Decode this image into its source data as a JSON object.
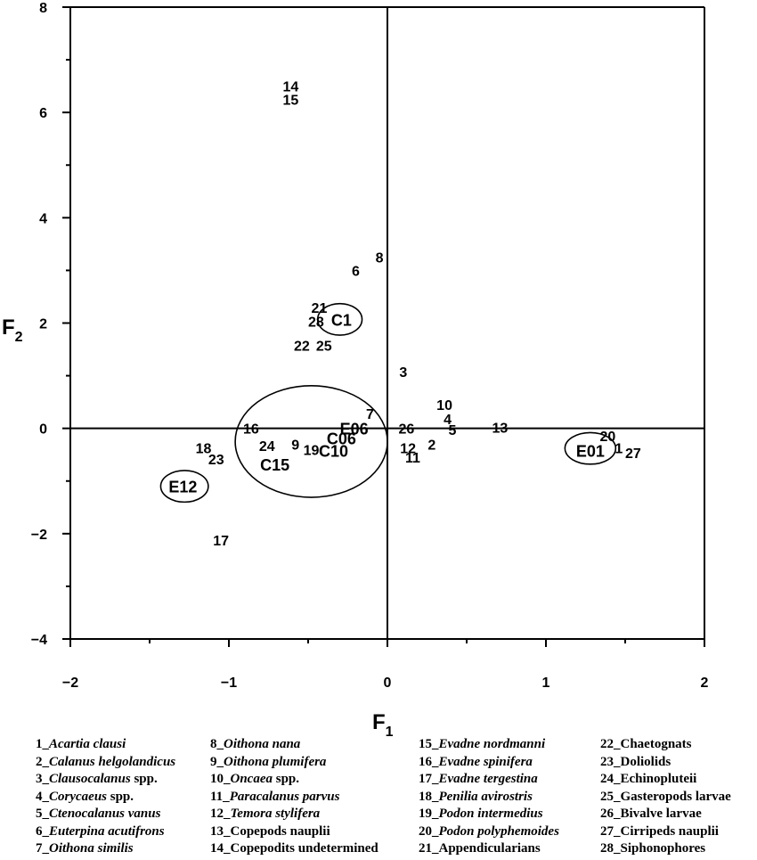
{
  "chart_data": {
    "type": "scatter",
    "xlabel": "F",
    "xlabel_sub": "1",
    "ylabel": "F",
    "ylabel_sub": "2",
    "xlim": [
      -2,
      2
    ],
    "ylim": [
      -4,
      8
    ],
    "x_ticks": [
      "−2",
      "−1",
      "0",
      "1",
      "2"
    ],
    "y_ticks": [
      "−4",
      "−2",
      "0",
      "2",
      "4",
      "6",
      "8"
    ],
    "x_tick_values": [
      -2,
      -1,
      0,
      1,
      2
    ],
    "y_tick_values": [
      -4,
      -2,
      0,
      2,
      4,
      6,
      8
    ],
    "grid": false,
    "species_points": [
      {
        "label": "14",
        "x": -0.61,
        "y": 6.5
      },
      {
        "label": "15",
        "x": -0.61,
        "y": 6.25
      },
      {
        "label": "8",
        "x": -0.05,
        "y": 3.25
      },
      {
        "label": "6",
        "x": -0.2,
        "y": 3.0
      },
      {
        "label": "21",
        "x": -0.43,
        "y": 2.3
      },
      {
        "label": "28",
        "x": -0.45,
        "y": 2.03
      },
      {
        "label": "22",
        "x": -0.54,
        "y": 1.58
      },
      {
        "label": "25",
        "x": -0.4,
        "y": 1.58
      },
      {
        "label": "3",
        "x": 0.1,
        "y": 1.08
      },
      {
        "label": "10",
        "x": 0.36,
        "y": 0.45
      },
      {
        "label": "7",
        "x": -0.11,
        "y": 0.28
      },
      {
        "label": "4",
        "x": 0.38,
        "y": 0.18
      },
      {
        "label": "16",
        "x": -0.86,
        "y": 0.0
      },
      {
        "label": "26",
        "x": 0.12,
        "y": 0.0
      },
      {
        "label": "13",
        "x": 0.71,
        "y": 0.02
      },
      {
        "label": "5",
        "x": 0.41,
        "y": -0.02
      },
      {
        "label": "20",
        "x": 1.39,
        "y": -0.14
      },
      {
        "label": "9",
        "x": -0.58,
        "y": -0.3
      },
      {
        "label": "24",
        "x": -0.76,
        "y": -0.33
      },
      {
        "label": "18",
        "x": -1.16,
        "y": -0.37
      },
      {
        "label": "2",
        "x": 0.28,
        "y": -0.3
      },
      {
        "label": "12",
        "x": 0.13,
        "y": -0.37
      },
      {
        "label": "19",
        "x": -0.48,
        "y": -0.4
      },
      {
        "label": "1",
        "x": 1.46,
        "y": -0.37
      },
      {
        "label": "27",
        "x": 1.55,
        "y": -0.46
      },
      {
        "label": "11",
        "x": 0.16,
        "y": -0.55
      },
      {
        "label": "23",
        "x": -1.08,
        "y": -0.58
      },
      {
        "label": "17",
        "x": -1.05,
        "y": -2.12
      }
    ],
    "stations": [
      {
        "label": "C1",
        "x": -0.29,
        "y": 2.07
      },
      {
        "label": "E06",
        "x": -0.21,
        "y": 0.0
      },
      {
        "label": "C06",
        "x": -0.29,
        "y": -0.18
      },
      {
        "label": "C10",
        "x": -0.34,
        "y": -0.42
      },
      {
        "label": "C15",
        "x": -0.71,
        "y": -0.68
      },
      {
        "label": "E01",
        "x": 1.28,
        "y": -0.42
      },
      {
        "label": "E12",
        "x": -1.29,
        "y": -1.1
      }
    ],
    "ellipses": [
      {
        "cx": -0.3,
        "cy": 2.07,
        "rx": 0.14,
        "ry": 0.3
      },
      {
        "cx": -0.48,
        "cy": -0.25,
        "rx": 0.48,
        "ry": 1.06
      },
      {
        "cx": 1.28,
        "cy": -0.38,
        "rx": 0.16,
        "ry": 0.3
      },
      {
        "cx": -1.28,
        "cy": -1.1,
        "rx": 0.15,
        "ry": 0.3
      }
    ]
  },
  "legend": [
    [
      {
        "num": "1_",
        "name": "Acartia clausi",
        "italic": true,
        "suffix": ""
      },
      {
        "num": "2_",
        "name": "Calanus helgolandicus",
        "italic": true,
        "suffix": ""
      },
      {
        "num": "3_",
        "name": "Clausocalanus",
        "italic": true,
        "suffix": " spp."
      },
      {
        "num": "4_",
        "name": "Corycaeus",
        "italic": true,
        "suffix": " spp."
      },
      {
        "num": "5_",
        "name": "Ctenocalanus vanus",
        "italic": true,
        "suffix": ""
      },
      {
        "num": "6_",
        "name": "Euterpina acutifrons",
        "italic": true,
        "suffix": ""
      },
      {
        "num": "7_",
        "name": "Oithona similis",
        "italic": true,
        "suffix": ""
      }
    ],
    [
      {
        "num": "8_",
        "name": "Oithona nana",
        "italic": true,
        "suffix": ""
      },
      {
        "num": "9_",
        "name": "Oithona plumifera",
        "italic": true,
        "suffix": ""
      },
      {
        "num": "10_",
        "name": "Oncaea",
        "italic": true,
        "suffix": " spp."
      },
      {
        "num": "11_",
        "name": "Paracalanus parvus",
        "italic": true,
        "suffix": ""
      },
      {
        "num": "12_",
        "name": "Temora stylifera",
        "italic": true,
        "suffix": ""
      },
      {
        "num": "13_",
        "name": "Copepods nauplii",
        "italic": false,
        "suffix": ""
      },
      {
        "num": "14_",
        "name": "Copepodits undetermined",
        "italic": false,
        "suffix": ""
      }
    ],
    [
      {
        "num": "15_",
        "name": "Evadne nordmanni",
        "italic": true,
        "suffix": ""
      },
      {
        "num": "16_",
        "name": "Evadne spinifera",
        "italic": true,
        "suffix": ""
      },
      {
        "num": "17_",
        "name": "Evadne tergestina",
        "italic": true,
        "suffix": ""
      },
      {
        "num": "18_",
        "name": "Penilia avirostris",
        "italic": true,
        "suffix": ""
      },
      {
        "num": "19_",
        "name": "Podon intermedius",
        "italic": true,
        "suffix": ""
      },
      {
        "num": "20_",
        "name": "Podon polyphemoides",
        "italic": true,
        "suffix": ""
      },
      {
        "num": "21_",
        "name": "Appendicularians",
        "italic": false,
        "suffix": ""
      }
    ],
    [
      {
        "num": "22_",
        "name": "Chaetognats",
        "italic": false,
        "suffix": ""
      },
      {
        "num": "23_",
        "name": "Doliolids",
        "italic": false,
        "suffix": ""
      },
      {
        "num": "24_",
        "name": "Echinopluteii",
        "italic": false,
        "suffix": ""
      },
      {
        "num": "25_",
        "name": "Gasteropods larvae",
        "italic": false,
        "suffix": ""
      },
      {
        "num": "26_",
        "name": "Bivalve larvae",
        "italic": false,
        "suffix": ""
      },
      {
        "num": "27_",
        "name": "Cirripeds nauplii",
        "italic": false,
        "suffix": ""
      },
      {
        "num": "28_",
        "name": "Siphonophores",
        "italic": false,
        "suffix": ""
      }
    ]
  ]
}
